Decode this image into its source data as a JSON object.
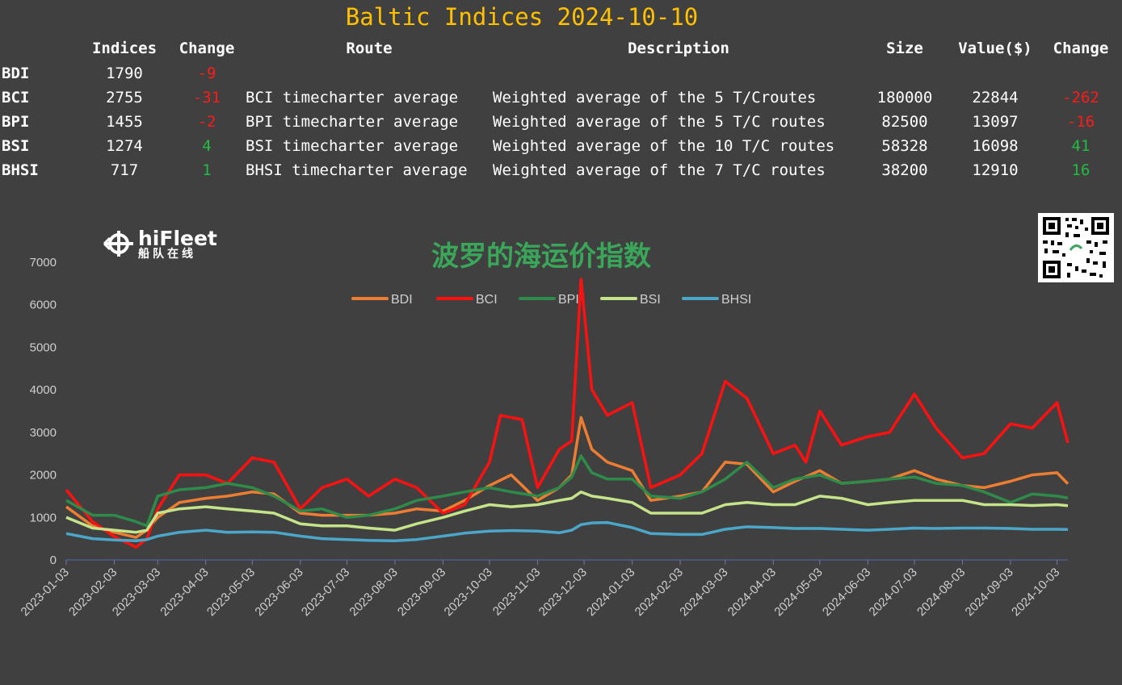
{
  "title": "Baltic Indices 2024-10-10",
  "table": {
    "headers": [
      "",
      "Indices",
      "Change",
      "Route",
      "Description",
      "Size",
      "Value($)",
      "Change"
    ],
    "rows": [
      {
        "name": "BDI",
        "index": "1790",
        "change": "-9",
        "route": "",
        "description": "",
        "size": "",
        "value": "",
        "value_change": ""
      },
      {
        "name": "BCI",
        "index": "2755",
        "change": "-31",
        "route": "BCI timecharter average",
        "description": "Weighted average of the 5 T/Croutes",
        "size": "180000",
        "value": "22844",
        "value_change": "-262"
      },
      {
        "name": "BPI",
        "index": "1455",
        "change": "-2",
        "route": "BPI timecharter average",
        "description": "Weighted average of the 5 T/C routes",
        "size": "82500",
        "value": "13097",
        "value_change": "-16"
      },
      {
        "name": "BSI",
        "index": "1274",
        "change": "4",
        "route": "BSI timecharter average",
        "description": "Weighted average of the 10 T/C routes",
        "size": "58328",
        "value": "16098",
        "value_change": "41"
      },
      {
        "name": "BHSI",
        "index": "717",
        "change": "1",
        "route": "BHSI timecharter average",
        "description": "Weighted average of the 7 T/C routes",
        "size": "38200",
        "value": "12910",
        "value_change": "16"
      }
    ]
  },
  "logo": {
    "en": "hiFleet",
    "cn": "船队在线"
  },
  "chart_data": {
    "type": "line",
    "title": "波罗的海运价指数",
    "ylim": [
      0,
      7000
    ],
    "yticks": [
      0,
      1000,
      2000,
      3000,
      4000,
      5000,
      6000,
      7000
    ],
    "x_range": [
      "2023-01-03",
      "2024-10-10"
    ],
    "xticks": [
      "2023-01-03",
      "2023-02-03",
      "2023-03-03",
      "2023-04-03",
      "2023-05-03",
      "2023-06-03",
      "2023-07-03",
      "2023-08-03",
      "2023-09-03",
      "2023-10-03",
      "2023-11-03",
      "2023-12-03",
      "2024-01-03",
      "2024-02-03",
      "2024-03-03",
      "2024-04-03",
      "2024-05-03",
      "2024-06-03",
      "2024-07-03",
      "2024-08-03",
      "2024-09-03",
      "2024-10-03"
    ],
    "legend_position": "top-center",
    "grid": false,
    "series": [
      {
        "name": "BDI",
        "color": "#ed7d31",
        "points": [
          [
            "2023-01-03",
            1250
          ],
          [
            "2023-01-20",
            800
          ],
          [
            "2023-02-03",
            650
          ],
          [
            "2023-02-17",
            530
          ],
          [
            "2023-02-24",
            700
          ],
          [
            "2023-03-03",
            1000
          ],
          [
            "2023-03-17",
            1350
          ],
          [
            "2023-04-03",
            1450
          ],
          [
            "2023-04-17",
            1500
          ],
          [
            "2023-05-03",
            1600
          ],
          [
            "2023-05-17",
            1550
          ],
          [
            "2023-06-03",
            1100
          ],
          [
            "2023-06-17",
            1050
          ],
          [
            "2023-07-03",
            1050
          ],
          [
            "2023-07-17",
            1050
          ],
          [
            "2023-08-03",
            1100
          ],
          [
            "2023-08-17",
            1200
          ],
          [
            "2023-09-03",
            1150
          ],
          [
            "2023-09-17",
            1400
          ],
          [
            "2023-10-03",
            1750
          ],
          [
            "2023-10-17",
            2000
          ],
          [
            "2023-11-03",
            1400
          ],
          [
            "2023-11-17",
            1700
          ],
          [
            "2023-11-25",
            2000
          ],
          [
            "2023-12-01",
            3350
          ],
          [
            "2023-12-08",
            2600
          ],
          [
            "2023-12-18",
            2300
          ],
          [
            "2024-01-03",
            2100
          ],
          [
            "2024-01-15",
            1400
          ],
          [
            "2024-02-03",
            1500
          ],
          [
            "2024-02-17",
            1600
          ],
          [
            "2024-03-03",
            2300
          ],
          [
            "2024-03-17",
            2250
          ],
          [
            "2024-04-03",
            1600
          ],
          [
            "2024-04-17",
            1850
          ],
          [
            "2024-05-03",
            2100
          ],
          [
            "2024-05-17",
            1800
          ],
          [
            "2024-06-03",
            1850
          ],
          [
            "2024-06-17",
            1900
          ],
          [
            "2024-07-03",
            2100
          ],
          [
            "2024-07-17",
            1900
          ],
          [
            "2024-08-03",
            1750
          ],
          [
            "2024-08-17",
            1700
          ],
          [
            "2024-09-03",
            1850
          ],
          [
            "2024-09-17",
            2000
          ],
          [
            "2024-10-03",
            2050
          ],
          [
            "2024-10-10",
            1790
          ]
        ]
      },
      {
        "name": "BCI",
        "color": "#ff1010",
        "points": [
          [
            "2023-01-03",
            1650
          ],
          [
            "2023-01-20",
            900
          ],
          [
            "2023-02-03",
            550
          ],
          [
            "2023-02-17",
            300
          ],
          [
            "2023-02-24",
            500
          ],
          [
            "2023-03-03",
            1200
          ],
          [
            "2023-03-17",
            2000
          ],
          [
            "2023-04-03",
            2000
          ],
          [
            "2023-04-17",
            1800
          ],
          [
            "2023-05-03",
            2400
          ],
          [
            "2023-05-17",
            2300
          ],
          [
            "2023-06-03",
            1200
          ],
          [
            "2023-06-17",
            1700
          ],
          [
            "2023-07-03",
            1900
          ],
          [
            "2023-07-17",
            1500
          ],
          [
            "2023-08-03",
            1900
          ],
          [
            "2023-08-17",
            1700
          ],
          [
            "2023-09-03",
            1100
          ],
          [
            "2023-09-17",
            1300
          ],
          [
            "2023-10-03",
            2300
          ],
          [
            "2023-10-10",
            3400
          ],
          [
            "2023-10-24",
            3300
          ],
          [
            "2023-11-03",
            1700
          ],
          [
            "2023-11-17",
            2600
          ],
          [
            "2023-11-25",
            2800
          ],
          [
            "2023-12-01",
            6600
          ],
          [
            "2023-12-08",
            4000
          ],
          [
            "2023-12-18",
            3400
          ],
          [
            "2024-01-03",
            3700
          ],
          [
            "2024-01-15",
            1700
          ],
          [
            "2024-02-03",
            2000
          ],
          [
            "2024-02-17",
            2500
          ],
          [
            "2024-03-03",
            4200
          ],
          [
            "2024-03-17",
            3800
          ],
          [
            "2024-04-03",
            2500
          ],
          [
            "2024-04-17",
            2700
          ],
          [
            "2024-04-24",
            2300
          ],
          [
            "2024-05-03",
            3500
          ],
          [
            "2024-05-17",
            2700
          ],
          [
            "2024-06-03",
            2900
          ],
          [
            "2024-06-17",
            3000
          ],
          [
            "2024-07-03",
            3900
          ],
          [
            "2024-07-17",
            3100
          ],
          [
            "2024-08-03",
            2400
          ],
          [
            "2024-08-17",
            2500
          ],
          [
            "2024-09-03",
            3200
          ],
          [
            "2024-09-17",
            3100
          ],
          [
            "2024-10-03",
            3700
          ],
          [
            "2024-10-10",
            2755
          ]
        ]
      },
      {
        "name": "BPI",
        "color": "#2e8b4a",
        "points": [
          [
            "2023-01-03",
            1400
          ],
          [
            "2023-01-20",
            1050
          ],
          [
            "2023-02-03",
            1050
          ],
          [
            "2023-02-17",
            900
          ],
          [
            "2023-02-24",
            800
          ],
          [
            "2023-03-03",
            1500
          ],
          [
            "2023-03-17",
            1650
          ],
          [
            "2023-04-03",
            1700
          ],
          [
            "2023-04-17",
            1800
          ],
          [
            "2023-05-03",
            1700
          ],
          [
            "2023-05-17",
            1500
          ],
          [
            "2023-06-03",
            1150
          ],
          [
            "2023-06-17",
            1200
          ],
          [
            "2023-07-03",
            1000
          ],
          [
            "2023-07-17",
            1050
          ],
          [
            "2023-08-03",
            1200
          ],
          [
            "2023-08-17",
            1400
          ],
          [
            "2023-09-03",
            1500
          ],
          [
            "2023-09-17",
            1600
          ],
          [
            "2023-10-03",
            1700
          ],
          [
            "2023-10-17",
            1600
          ],
          [
            "2023-11-03",
            1500
          ],
          [
            "2023-11-17",
            1700
          ],
          [
            "2023-11-25",
            1950
          ],
          [
            "2023-12-01",
            2450
          ],
          [
            "2023-12-08",
            2050
          ],
          [
            "2023-12-18",
            1900
          ],
          [
            "2024-01-03",
            1900
          ],
          [
            "2024-01-15",
            1500
          ],
          [
            "2024-02-03",
            1450
          ],
          [
            "2024-02-17",
            1600
          ],
          [
            "2024-03-03",
            1900
          ],
          [
            "2024-03-17",
            2300
          ],
          [
            "2024-04-03",
            1700
          ],
          [
            "2024-04-17",
            1900
          ],
          [
            "2024-05-03",
            2000
          ],
          [
            "2024-05-17",
            1800
          ],
          [
            "2024-06-03",
            1850
          ],
          [
            "2024-06-17",
            1900
          ],
          [
            "2024-07-03",
            1950
          ],
          [
            "2024-07-17",
            1800
          ],
          [
            "2024-08-03",
            1750
          ],
          [
            "2024-08-17",
            1600
          ],
          [
            "2024-09-03",
            1350
          ],
          [
            "2024-09-17",
            1550
          ],
          [
            "2024-10-03",
            1500
          ],
          [
            "2024-10-10",
            1455
          ]
        ]
      },
      {
        "name": "BSI",
        "color": "#c5e48a",
        "points": [
          [
            "2023-01-03",
            1000
          ],
          [
            "2023-01-20",
            750
          ],
          [
            "2023-02-03",
            700
          ],
          [
            "2023-02-17",
            650
          ],
          [
            "2023-02-24",
            700
          ],
          [
            "2023-03-03",
            1100
          ],
          [
            "2023-03-17",
            1200
          ],
          [
            "2023-04-03",
            1250
          ],
          [
            "2023-04-17",
            1200
          ],
          [
            "2023-05-03",
            1150
          ],
          [
            "2023-05-17",
            1100
          ],
          [
            "2023-06-03",
            850
          ],
          [
            "2023-06-17",
            800
          ],
          [
            "2023-07-03",
            800
          ],
          [
            "2023-07-17",
            750
          ],
          [
            "2023-08-03",
            700
          ],
          [
            "2023-08-17",
            850
          ],
          [
            "2023-09-03",
            1000
          ],
          [
            "2023-09-17",
            1150
          ],
          [
            "2023-10-03",
            1300
          ],
          [
            "2023-10-17",
            1250
          ],
          [
            "2023-11-03",
            1300
          ],
          [
            "2023-11-17",
            1400
          ],
          [
            "2023-11-25",
            1450
          ],
          [
            "2023-12-01",
            1600
          ],
          [
            "2023-12-08",
            1500
          ],
          [
            "2023-12-18",
            1450
          ],
          [
            "2024-01-03",
            1350
          ],
          [
            "2024-01-15",
            1100
          ],
          [
            "2024-02-03",
            1100
          ],
          [
            "2024-02-17",
            1100
          ],
          [
            "2024-03-03",
            1300
          ],
          [
            "2024-03-17",
            1350
          ],
          [
            "2024-04-03",
            1300
          ],
          [
            "2024-04-17",
            1300
          ],
          [
            "2024-05-03",
            1500
          ],
          [
            "2024-05-17",
            1450
          ],
          [
            "2024-06-03",
            1300
          ],
          [
            "2024-06-17",
            1350
          ],
          [
            "2024-07-03",
            1400
          ],
          [
            "2024-07-17",
            1400
          ],
          [
            "2024-08-03",
            1400
          ],
          [
            "2024-08-17",
            1300
          ],
          [
            "2024-09-03",
            1300
          ],
          [
            "2024-09-17",
            1280
          ],
          [
            "2024-10-03",
            1300
          ],
          [
            "2024-10-10",
            1274
          ]
        ]
      },
      {
        "name": "BHSI",
        "color": "#4aa7c9",
        "points": [
          [
            "2023-01-03",
            620
          ],
          [
            "2023-01-20",
            500
          ],
          [
            "2023-02-03",
            470
          ],
          [
            "2023-02-17",
            450
          ],
          [
            "2023-02-24",
            480
          ],
          [
            "2023-03-03",
            560
          ],
          [
            "2023-03-17",
            650
          ],
          [
            "2023-04-03",
            700
          ],
          [
            "2023-04-17",
            650
          ],
          [
            "2023-05-03",
            660
          ],
          [
            "2023-05-17",
            650
          ],
          [
            "2023-06-03",
            560
          ],
          [
            "2023-06-17",
            500
          ],
          [
            "2023-07-03",
            480
          ],
          [
            "2023-07-17",
            460
          ],
          [
            "2023-08-03",
            450
          ],
          [
            "2023-08-17",
            480
          ],
          [
            "2023-09-03",
            560
          ],
          [
            "2023-09-17",
            630
          ],
          [
            "2023-10-03",
            680
          ],
          [
            "2023-10-17",
            690
          ],
          [
            "2023-11-03",
            680
          ],
          [
            "2023-11-17",
            640
          ],
          [
            "2023-11-25",
            700
          ],
          [
            "2023-12-01",
            830
          ],
          [
            "2023-12-08",
            870
          ],
          [
            "2023-12-18",
            880
          ],
          [
            "2024-01-03",
            760
          ],
          [
            "2024-01-15",
            620
          ],
          [
            "2024-02-03",
            600
          ],
          [
            "2024-02-17",
            600
          ],
          [
            "2024-03-03",
            720
          ],
          [
            "2024-03-17",
            780
          ],
          [
            "2024-04-03",
            760
          ],
          [
            "2024-04-17",
            740
          ],
          [
            "2024-05-03",
            740
          ],
          [
            "2024-05-17",
            720
          ],
          [
            "2024-06-03",
            700
          ],
          [
            "2024-06-17",
            720
          ],
          [
            "2024-07-03",
            750
          ],
          [
            "2024-07-17",
            740
          ],
          [
            "2024-08-03",
            750
          ],
          [
            "2024-08-17",
            750
          ],
          [
            "2024-09-03",
            740
          ],
          [
            "2024-09-17",
            720
          ],
          [
            "2024-10-03",
            720
          ],
          [
            "2024-10-10",
            717
          ]
        ]
      }
    ]
  }
}
